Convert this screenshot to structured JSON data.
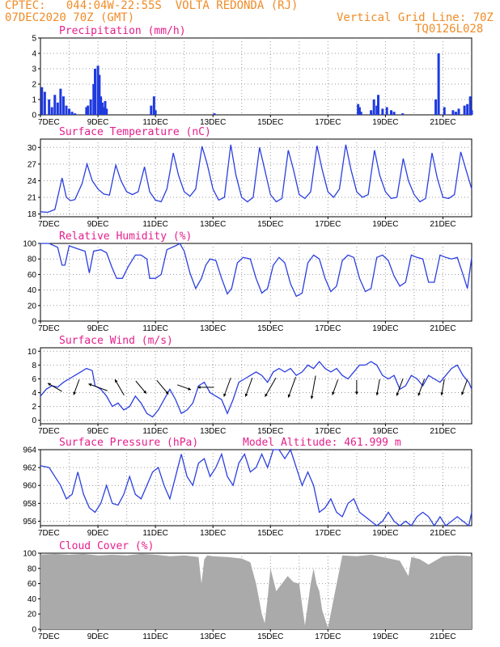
{
  "header": {
    "line1_left": "CPTEC:   044:04W-22:55S  VOLTA REDONDA (RJ)",
    "line2_left": "07DEC2020 70Z (GMT)",
    "line2_right": "Vertical Grid Line: 70Z",
    "line3_right": "TQ0126L028"
  },
  "colors": {
    "header": "#f08c28",
    "title": "#e61e8c",
    "line": "#2b3fe0",
    "bar": "#1f3adf",
    "cloud": "#aaaaaa",
    "grid": "#999999"
  },
  "x_ticks": [
    "7DEC",
    "9DEC",
    "11DEC",
    "13DEC",
    "15DEC",
    "17DEC",
    "19DEC",
    "21DEC"
  ],
  "x_range_days": [
    0,
    15
  ],
  "chart_data": [
    {
      "type": "bar",
      "title": "Precipitation (mm/h)",
      "ylim": [
        0,
        5
      ],
      "yticks": [
        0,
        1,
        2,
        3,
        4,
        5
      ],
      "x": [
        0.05,
        0.15,
        0.3,
        0.4,
        0.5,
        0.6,
        0.7,
        0.8,
        0.9,
        1.0,
        1.1,
        1.2,
        1.6,
        1.65,
        1.75,
        1.85,
        1.9,
        2.0,
        2.05,
        2.1,
        2.15,
        2.2,
        2.25,
        2.3,
        3.85,
        3.95,
        4.0,
        6.05,
        11.05,
        11.1,
        11.15,
        11.5,
        11.6,
        11.7,
        11.75,
        11.9,
        12.05,
        12.2,
        12.3,
        12.6,
        13.75,
        13.85,
        14.05,
        14.35,
        14.45,
        14.55,
        14.75,
        14.85,
        14.95,
        15.0
      ],
      "values": [
        1.8,
        1.5,
        1.0,
        0.5,
        1.3,
        0.8,
        1.7,
        1.2,
        0.6,
        0.4,
        0.2,
        0.1,
        0.5,
        0.6,
        1.0,
        2.0,
        3.0,
        3.2,
        2.6,
        1.2,
        0.8,
        0.5,
        0.9,
        0.4,
        0.6,
        1.2,
        0.3,
        0.1,
        0.7,
        0.5,
        0.2,
        0.3,
        1.0,
        0.6,
        1.3,
        0.4,
        0.5,
        0.3,
        0.2,
        0.1,
        1.0,
        4.0,
        0.5,
        0.3,
        0.2,
        0.4,
        0.6,
        0.7,
        1.2,
        0.3
      ]
    },
    {
      "type": "line",
      "title": "Surface Temperature (nC)",
      "ylim": [
        17.5,
        31.5
      ],
      "yticks": [
        18,
        21,
        24,
        27,
        30
      ],
      "x": [
        0,
        0.25,
        0.5,
        0.6,
        0.75,
        0.9,
        1.05,
        1.2,
        1.45,
        1.62,
        1.8,
        2.0,
        2.2,
        2.4,
        2.62,
        2.8,
        3.0,
        3.2,
        3.4,
        3.62,
        3.8,
        4.0,
        4.2,
        4.4,
        4.62,
        4.8,
        5.0,
        5.2,
        5.4,
        5.62,
        5.8,
        6.0,
        6.2,
        6.4,
        6.62,
        6.8,
        7.0,
        7.2,
        7.4,
        7.62,
        7.8,
        8.0,
        8.2,
        8.4,
        8.62,
        8.8,
        9.0,
        9.2,
        9.4,
        9.62,
        9.8,
        10.0,
        10.2,
        10.4,
        10.62,
        10.8,
        11.0,
        11.2,
        11.4,
        11.62,
        11.8,
        12.0,
        12.2,
        12.4,
        12.62,
        12.8,
        13.0,
        13.2,
        13.4,
        13.62,
        13.8,
        14.0,
        14.2,
        14.4,
        14.62,
        14.8,
        15.0
      ],
      "values": [
        18.4,
        18.3,
        18.8,
        21,
        24.5,
        21,
        20.4,
        20.6,
        23.5,
        27,
        24,
        22.5,
        21.6,
        21.4,
        26.8,
        24,
        22,
        21.5,
        22,
        26.5,
        22,
        20.5,
        20.2,
        22.5,
        29,
        25,
        22,
        21.2,
        22.5,
        30.2,
        27,
        22.5,
        20.5,
        21,
        30.5,
        25,
        21,
        20.2,
        21,
        30,
        26,
        21.5,
        20.2,
        20.8,
        29.5,
        26,
        21.5,
        20.8,
        22,
        30.3,
        26,
        22,
        21,
        22.5,
        30.5,
        26,
        22,
        21,
        21.5,
        29.5,
        25,
        22,
        20.8,
        21,
        28,
        24,
        21.5,
        20.2,
        20.8,
        29,
        24.5,
        21,
        20.8,
        21.5,
        29.2,
        26,
        22.5
      ]
    },
    {
      "type": "line",
      "title": "Relative Humidity (%)",
      "ylim": [
        0,
        100
      ],
      "yticks": [
        0,
        20,
        40,
        60,
        80,
        100
      ],
      "x": [
        0,
        0.3,
        0.6,
        0.75,
        0.85,
        1.0,
        1.3,
        1.55,
        1.7,
        1.85,
        2.1,
        2.3,
        2.5,
        2.65,
        2.85,
        3.05,
        3.3,
        3.5,
        3.7,
        3.8,
        4.0,
        4.2,
        4.4,
        4.7,
        4.85,
        5.0,
        5.2,
        5.4,
        5.6,
        5.75,
        5.9,
        6.1,
        6.3,
        6.5,
        6.65,
        6.85,
        7.05,
        7.3,
        7.5,
        7.7,
        7.9,
        8.1,
        8.3,
        8.5,
        8.7,
        8.9,
        9.1,
        9.3,
        9.5,
        9.7,
        9.9,
        10.1,
        10.3,
        10.5,
        10.7,
        10.9,
        11.1,
        11.3,
        11.5,
        11.7,
        11.9,
        12.1,
        12.3,
        12.5,
        12.7,
        12.9,
        13.1,
        13.3,
        13.5,
        13.7,
        13.9,
        14.1,
        14.3,
        14.5,
        14.7,
        14.85,
        15.0
      ],
      "values": [
        100,
        100,
        95,
        72,
        72,
        97,
        93,
        90,
        62,
        90,
        92,
        88,
        68,
        55,
        55,
        70,
        85,
        85,
        80,
        55,
        55,
        60,
        92,
        97,
        100,
        90,
        62,
        42,
        55,
        72,
        80,
        78,
        55,
        35,
        42,
        75,
        82,
        80,
        55,
        36,
        42,
        72,
        82,
        75,
        48,
        32,
        36,
        75,
        85,
        80,
        55,
        38,
        45,
        78,
        85,
        82,
        55,
        38,
        42,
        82,
        85,
        78,
        58,
        45,
        50,
        85,
        82,
        80,
        50,
        50,
        85,
        82,
        80,
        82,
        60,
        42,
        82
      ]
    },
    {
      "type": "line",
      "title": "Surface Wind (m/s)",
      "ylim": [
        -0.5,
        10.5
      ],
      "yticks": [
        0,
        2,
        4,
        6,
        8,
        10
      ],
      "x": [
        0,
        0.2,
        0.4,
        0.6,
        0.8,
        1.0,
        1.2,
        1.4,
        1.6,
        1.8,
        1.9,
        2.1,
        2.3,
        2.5,
        2.7,
        2.9,
        3.1,
        3.3,
        3.5,
        3.7,
        3.9,
        4.1,
        4.3,
        4.5,
        4.7,
        4.9,
        5.1,
        5.3,
        5.5,
        5.7,
        5.9,
        6.1,
        6.3,
        6.5,
        6.7,
        6.9,
        7.1,
        7.3,
        7.5,
        7.7,
        7.9,
        8.1,
        8.3,
        8.5,
        8.7,
        8.9,
        9.1,
        9.3,
        9.5,
        9.7,
        9.9,
        10.1,
        10.3,
        10.5,
        10.7,
        10.9,
        11.1,
        11.3,
        11.5,
        11.7,
        11.9,
        12.1,
        12.3,
        12.5,
        12.7,
        12.9,
        13.1,
        13.3,
        13.5,
        13.7,
        13.9,
        14.1,
        14.3,
        14.5,
        14.7,
        14.9,
        15.0
      ],
      "values": [
        3.5,
        4.5,
        5,
        4.8,
        5.5,
        6,
        6.5,
        7,
        7.5,
        7.2,
        5,
        4.5,
        3.5,
        2,
        2.5,
        1.5,
        2,
        3.5,
        2.5,
        1,
        0.5,
        1.5,
        3,
        4.5,
        3,
        1,
        1.5,
        2.5,
        5,
        5.5,
        4,
        3.5,
        3,
        1,
        3,
        5.5,
        6,
        6.5,
        7,
        6.5,
        5.5,
        7,
        7.5,
        7,
        7.5,
        6.5,
        7,
        8,
        7.5,
        8.5,
        7.5,
        7,
        7.5,
        6.5,
        6,
        7,
        8,
        8,
        8.5,
        8,
        6.5,
        6,
        6.5,
        4.5,
        5,
        6.5,
        6,
        5,
        6.5,
        6,
        5.5,
        6.5,
        7.5,
        8,
        6.5,
        5.5,
        4.5
      ]
    },
    {
      "type": "line",
      "title": "Surface Pressure (hPa)",
      "annotation": "Model Altitude: 461.999 m",
      "ylim": [
        955.5,
        964
      ],
      "yticks": [
        956,
        958,
        960,
        962,
        964
      ],
      "x": [
        0,
        0.3,
        0.5,
        0.7,
        0.9,
        1.1,
        1.3,
        1.5,
        1.7,
        1.9,
        2.1,
        2.3,
        2.5,
        2.7,
        2.9,
        3.1,
        3.3,
        3.5,
        3.7,
        3.9,
        4.1,
        4.3,
        4.5,
        4.7,
        4.9,
        5.1,
        5.3,
        5.5,
        5.7,
        5.9,
        6.1,
        6.3,
        6.5,
        6.7,
        6.9,
        7.1,
        7.3,
        7.5,
        7.7,
        7.9,
        8.1,
        8.3,
        8.5,
        8.7,
        8.9,
        9.1,
        9.3,
        9.5,
        9.7,
        9.9,
        10.1,
        10.3,
        10.5,
        10.7,
        10.9,
        11.1,
        11.3,
        11.5,
        11.7,
        11.9,
        12.1,
        12.3,
        12.5,
        12.7,
        12.9,
        13.1,
        13.3,
        13.5,
        13.7,
        13.9,
        14.1,
        14.3,
        14.5,
        14.7,
        14.9,
        15.0
      ],
      "values": [
        962.2,
        962,
        961,
        960,
        958.5,
        959,
        961.5,
        959,
        957.5,
        957,
        958,
        960,
        958,
        957.8,
        959,
        961,
        959,
        958.5,
        960,
        961.5,
        962,
        960,
        958.5,
        961,
        963.5,
        961,
        960,
        962.5,
        963,
        961,
        962,
        963.5,
        961,
        960,
        962.5,
        963.5,
        961.5,
        962,
        963.5,
        962,
        964,
        964,
        963,
        964,
        962,
        960,
        961.5,
        960,
        957,
        957.5,
        958.5,
        957,
        956.5,
        958,
        958.5,
        957,
        956.5,
        956,
        955.5,
        956,
        957,
        956,
        955.5,
        956,
        955.5,
        956.5,
        957,
        956.5,
        955.5,
        956.5,
        955.5,
        956,
        956.5,
        956,
        955.5,
        957
      ]
    },
    {
      "type": "area",
      "title": "Cloud Cover (%)",
      "ylim": [
        0,
        100
      ],
      "yticks": [
        0,
        20,
        40,
        60,
        80,
        100
      ],
      "x": [
        0,
        0.5,
        1.0,
        1.5,
        2.0,
        2.5,
        3.0,
        3.5,
        4.0,
        4.5,
        5.0,
        5.5,
        5.6,
        5.7,
        5.8,
        6.0,
        6.5,
        7.0,
        7.3,
        7.5,
        7.6,
        7.7,
        7.8,
        7.9,
        8.0,
        8.2,
        8.4,
        8.6,
        8.8,
        9.0,
        9.2,
        9.4,
        9.5,
        9.6,
        9.7,
        9.8,
        10.0,
        10.5,
        11.0,
        11.5,
        12.0,
        12.5,
        12.8,
        12.9,
        13.2,
        13.5,
        14.0,
        14.5,
        15.0
      ],
      "values": [
        98,
        99,
        98,
        99,
        97,
        98,
        97,
        99,
        98,
        96,
        97,
        95,
        60,
        92,
        97,
        96,
        95,
        93,
        88,
        60,
        40,
        20,
        8,
        40,
        80,
        50,
        60,
        70,
        62,
        60,
        5,
        60,
        80,
        60,
        50,
        25,
        2,
        97,
        96,
        98,
        94,
        90,
        70,
        95,
        92,
        85,
        96,
        97,
        96
      ]
    }
  ],
  "wind_arrows": {
    "speeds": [
      4.5,
      4.5,
      5.5,
      5,
      4.5,
      5,
      4,
      4.5,
      5.5,
      5.5,
      6,
      6,
      6.5,
      4.5,
      4,
      4.5,
      5,
      5,
      4.5,
      4.5
    ],
    "dirs_deg": [
      300,
      200,
      290,
      330,
      140,
      140,
      110,
      270,
      200,
      200,
      210,
      200,
      190,
      200,
      180,
      190,
      200,
      200,
      190,
      200
    ]
  }
}
